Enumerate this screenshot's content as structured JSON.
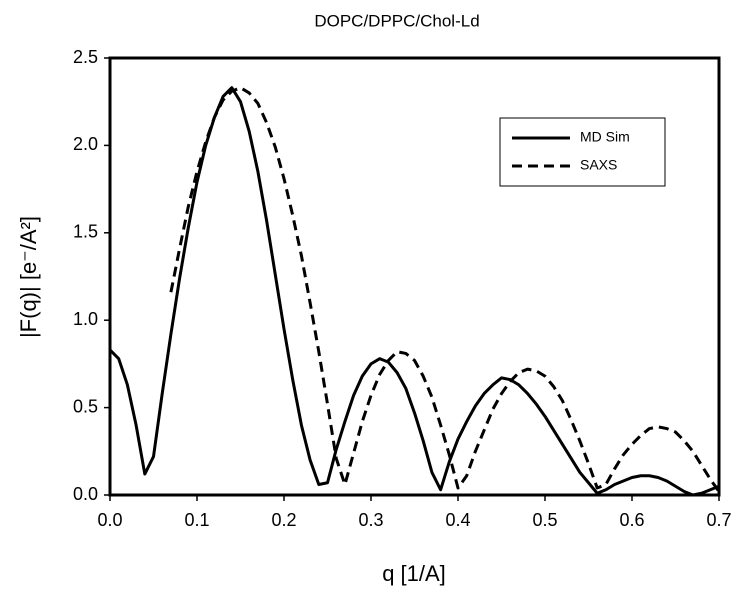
{
  "chart_data": {
    "type": "line",
    "title": "DOPC/DPPC/Chol-Ld",
    "x_label": "q [1/A]",
    "y_label": "|F(q)| [e⁻/A²]",
    "x": [
      0,
      0.01,
      0.02,
      0.03,
      0.04,
      0.05,
      0.06,
      0.07,
      0.08,
      0.09,
      0.1,
      0.11,
      0.12,
      0.13,
      0.14,
      0.15,
      0.16,
      0.17,
      0.18,
      0.19,
      0.2,
      0.21,
      0.22,
      0.23,
      0.24,
      0.25,
      0.26,
      0.27,
      0.28,
      0.29,
      0.3,
      0.31,
      0.32,
      0.33,
      0.34,
      0.35,
      0.36,
      0.37,
      0.38,
      0.39,
      0.4,
      0.41,
      0.42,
      0.43,
      0.44,
      0.45,
      0.46,
      0.47,
      0.48,
      0.49,
      0.5,
      0.51,
      0.52,
      0.53,
      0.54,
      0.55,
      0.56,
      0.57,
      0.58,
      0.59,
      0.6,
      0.61,
      0.62,
      0.63,
      0.64,
      0.65,
      0.66,
      0.67,
      0.68,
      0.69,
      0.7
    ],
    "series": [
      {
        "name": "MD Sim",
        "color": "#000000",
        "dash": "solid",
        "values": [
          0.83,
          0.78,
          0.63,
          0.4,
          0.12,
          0.22,
          0.58,
          0.92,
          1.24,
          1.53,
          1.79,
          2.0,
          2.16,
          2.28,
          2.33,
          2.25,
          2.08,
          1.85,
          1.57,
          1.26,
          0.95,
          0.66,
          0.4,
          0.2,
          0.06,
          0.07,
          0.26,
          0.42,
          0.57,
          0.68,
          0.75,
          0.78,
          0.76,
          0.7,
          0.61,
          0.47,
          0.31,
          0.13,
          0.03,
          0.19,
          0.32,
          0.42,
          0.51,
          0.58,
          0.63,
          0.67,
          0.66,
          0.63,
          0.58,
          0.52,
          0.45,
          0.37,
          0.29,
          0.21,
          0.13,
          0.07,
          0.01,
          0.03,
          0.06,
          0.08,
          0.1,
          0.11,
          0.11,
          0.1,
          0.08,
          0.05,
          0.02,
          0.0,
          0.01,
          0.03,
          0.05
        ]
      },
      {
        "name": "SAXS",
        "color": "#000000",
        "dash": "dashed",
        "values": [
          null,
          null,
          null,
          null,
          null,
          null,
          null,
          1.16,
          1.41,
          1.65,
          1.85,
          2.02,
          2.16,
          2.26,
          2.31,
          2.33,
          2.3,
          2.24,
          2.13,
          1.99,
          1.81,
          1.6,
          1.37,
          1.1,
          0.82,
          0.52,
          0.21,
          0.06,
          0.24,
          0.42,
          0.57,
          0.69,
          0.77,
          0.82,
          0.81,
          0.77,
          0.68,
          0.56,
          0.4,
          0.23,
          0.04,
          0.11,
          0.25,
          0.37,
          0.49,
          0.58,
          0.65,
          0.7,
          0.72,
          0.71,
          0.68,
          0.62,
          0.54,
          0.43,
          0.31,
          0.18,
          0.04,
          0.06,
          0.15,
          0.23,
          0.29,
          0.34,
          0.38,
          0.39,
          0.38,
          0.36,
          0.31,
          0.25,
          0.17,
          0.09,
          0.02
        ]
      }
    ],
    "xlim": [
      0,
      0.7
    ],
    "ylim": [
      0,
      2.5
    ],
    "xticks": [
      {
        "value": 0,
        "label": "0.0"
      },
      0.1,
      0.2,
      0.3,
      0.4,
      0.5,
      0.6,
      0.7
    ],
    "yticks": [
      {
        "value": 0,
        "label": "0.0"
      },
      0.5,
      {
        "value": 1,
        "label": "1.0"
      },
      1.5,
      {
        "value": 2,
        "label": "2.0"
      },
      2.5
    ],
    "grid": false,
    "legend": "upper right"
  }
}
